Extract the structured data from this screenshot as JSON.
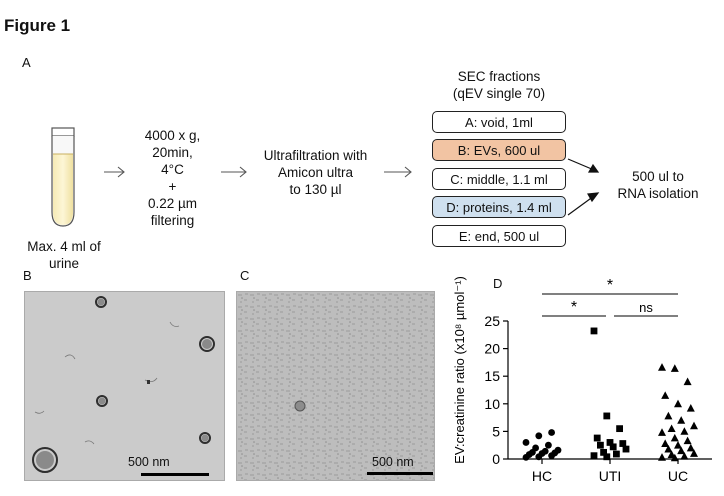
{
  "figure_title": "Figure 1",
  "panel_a": {
    "letter": "A",
    "tube_label": [
      "Max. 4 ml of",
      "urine"
    ],
    "centrifuge_text": [
      "4000 x g,",
      "20min,",
      "4°C",
      "+",
      "0.22 µm",
      "filtering"
    ],
    "ultrafiltration_text": [
      "Ultrafiltration with",
      "Amicon ultra",
      "to 130 µl"
    ],
    "sec_header": [
      "SEC fractions",
      "(qEV single 70)"
    ],
    "fractions": [
      {
        "label": "A: void, 1ml",
        "color": "#ffffff"
      },
      {
        "label": "B: EVs, 600 ul",
        "color": "#f2c4a3"
      },
      {
        "label": "C: middle, 1.1 ml",
        "color": "#ffffff"
      },
      {
        "label": "D: proteins, 1.4 ml",
        "color": "#cfe0ef"
      },
      {
        "label": "E: end, 500 ul",
        "color": "#ffffff"
      }
    ],
    "rna_text": [
      "500 ul to",
      "RNA isolation"
    ]
  },
  "panel_b": {
    "letter": "B",
    "scale_bar": "500 nm"
  },
  "panel_c": {
    "letter": "C",
    "scale_bar": "500 nm"
  },
  "panel_d": {
    "letter": "D"
  },
  "chart_data": {
    "type": "scatter",
    "categories": [
      "HC",
      "UTI",
      "UC"
    ],
    "ylabel": "EV:creatinine ratio (x10⁸ µmol⁻¹)",
    "ylim": [
      0,
      25
    ],
    "yticks": [
      0,
      5,
      10,
      15,
      20,
      25
    ],
    "series": [
      {
        "category": "HC",
        "marker": "circle",
        "values": [
          0.3,
          0.4,
          0.6,
          0.8,
          1.0,
          1.1,
          1.2,
          1.4,
          1.6,
          2.0,
          2.5,
          3.0,
          4.2,
          4.8
        ]
      },
      {
        "category": "UTI",
        "marker": "square",
        "values": [
          23.2,
          7.8,
          5.5,
          3.8,
          3.0,
          2.8,
          2.5,
          2.2,
          1.8,
          1.2,
          0.9,
          0.6,
          0.4
        ]
      },
      {
        "category": "UC",
        "marker": "triangle",
        "values": [
          16.6,
          16.4,
          14.0,
          11.5,
          10.0,
          9.2,
          7.8,
          7.0,
          6.0,
          5.5,
          5.0,
          4.8,
          3.8,
          3.3,
          2.8,
          2.5,
          2.0,
          1.8,
          1.5,
          1.0,
          0.8,
          0.5,
          0.3,
          0.2
        ]
      }
    ],
    "significance": [
      {
        "from": "HC",
        "to": "UC",
        "label": "*"
      },
      {
        "from": "HC",
        "to": "UTI",
        "label": "*"
      },
      {
        "from": "UTI",
        "to": "UC",
        "label": "ns"
      }
    ]
  }
}
